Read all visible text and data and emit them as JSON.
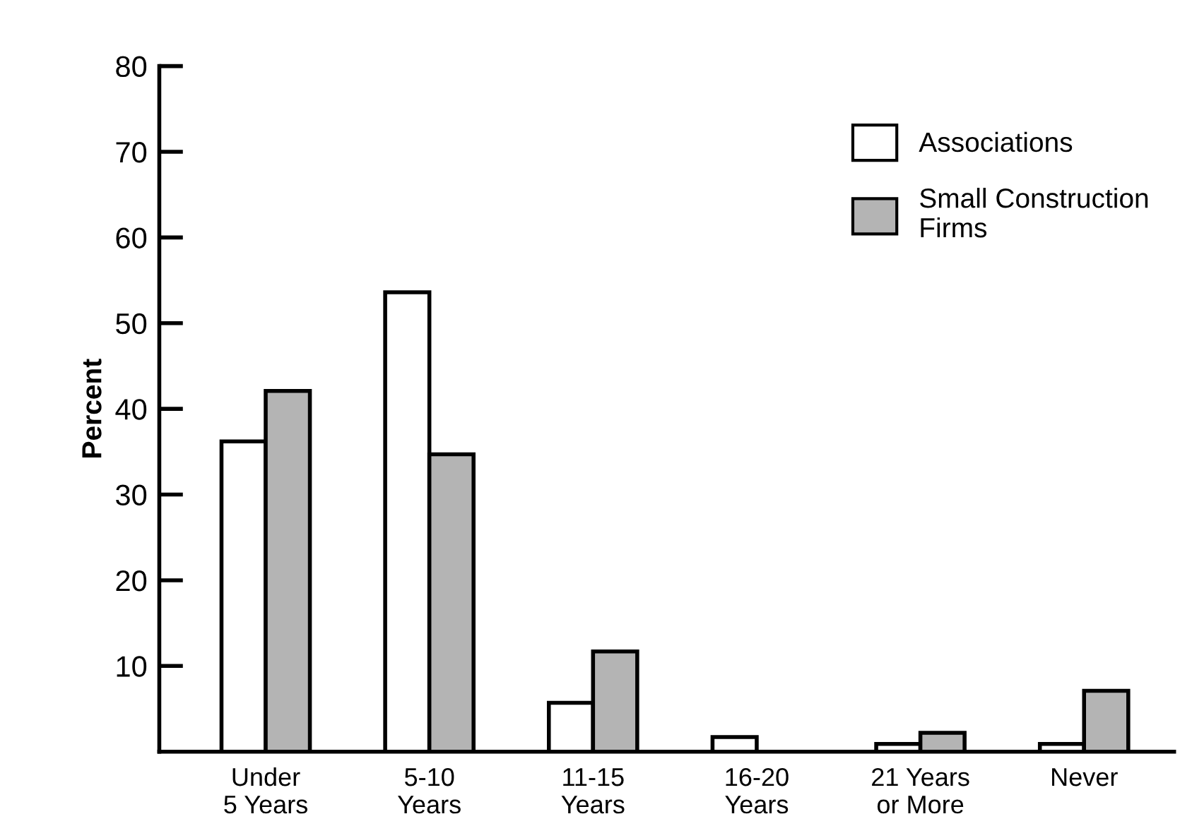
{
  "chart_data": {
    "type": "bar",
    "ylabel": "Percent",
    "categories": [
      "Under\n5 Years",
      "5-10\nYears",
      "11-15\nYears",
      "16-20\nYears",
      "21 Years\nor More",
      "Never"
    ],
    "series": [
      {
        "name": "Associations",
        "color": "#ffffff",
        "values": [
          36.2,
          53.6,
          5.7,
          1.7,
          0.9,
          0.9
        ]
      },
      {
        "name": "Small Construction\nFirms",
        "color": "#b4b4b4",
        "values": [
          42.1,
          34.7,
          11.7,
          null,
          2.2,
          7.1
        ]
      }
    ],
    "ylim": [
      0,
      80
    ],
    "yticks": [
      10,
      20,
      30,
      40,
      50,
      60,
      70,
      80
    ],
    "grid": false,
    "legend": "top right"
  }
}
